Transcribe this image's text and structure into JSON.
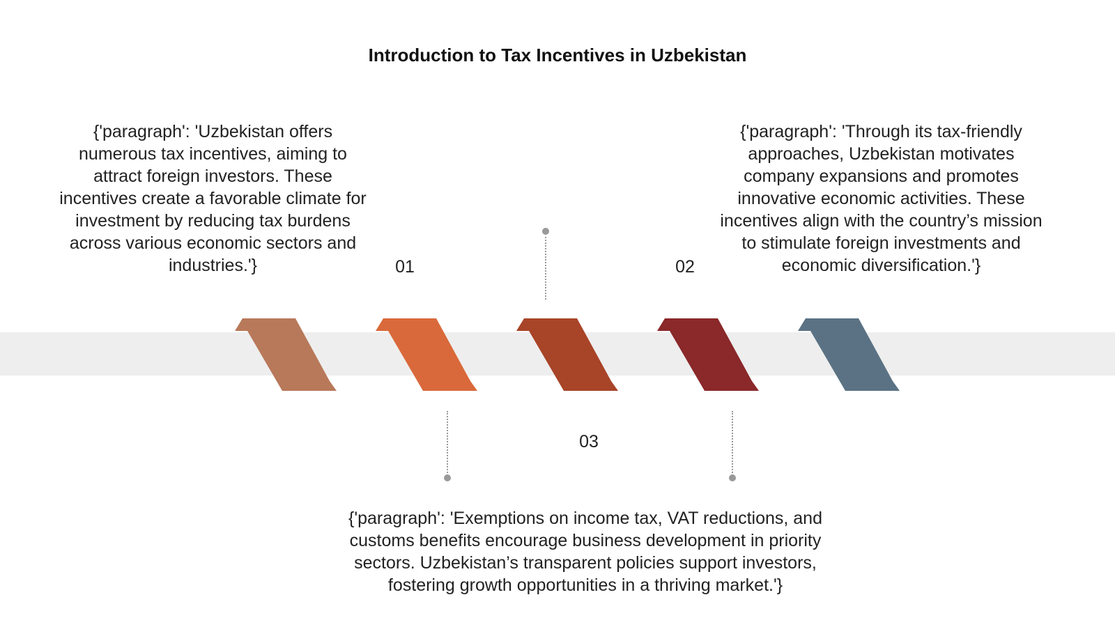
{
  "title": "Introduction to Tax Incentives in Uzbekistan",
  "items": [
    {
      "number": "01",
      "paragraph": "{'paragraph': 'Uzbekistan offers numerous tax incentives, aiming to attract foreign investors. These incentives create a favorable climate for investment by reducing tax burdens across various economic sectors and industries.'}"
    },
    {
      "number": "02",
      "paragraph": "{'paragraph': 'Through its tax-friendly approaches, Uzbekistan motivates company expansions and promotes innovative economic activities. These incentives align with the country’s mission to stimulate foreign investments and economic diversification.'}"
    },
    {
      "number": "03",
      "paragraph": "{'paragraph': 'Exemptions on income tax, VAT reductions, and customs benefits encourage business development in priority sectors. Uzbekistan’s transparent policies support investors, fostering growth opportunities in a thriving market.'}"
    }
  ],
  "colors": {
    "chevron_1": "#b8795a",
    "chevron_2": "#d9693a",
    "chevron_3": "#a84428",
    "chevron_4": "#8a282a",
    "chevron_5": "#5a7284",
    "band": "#eeeeee",
    "connector": "#999999"
  }
}
